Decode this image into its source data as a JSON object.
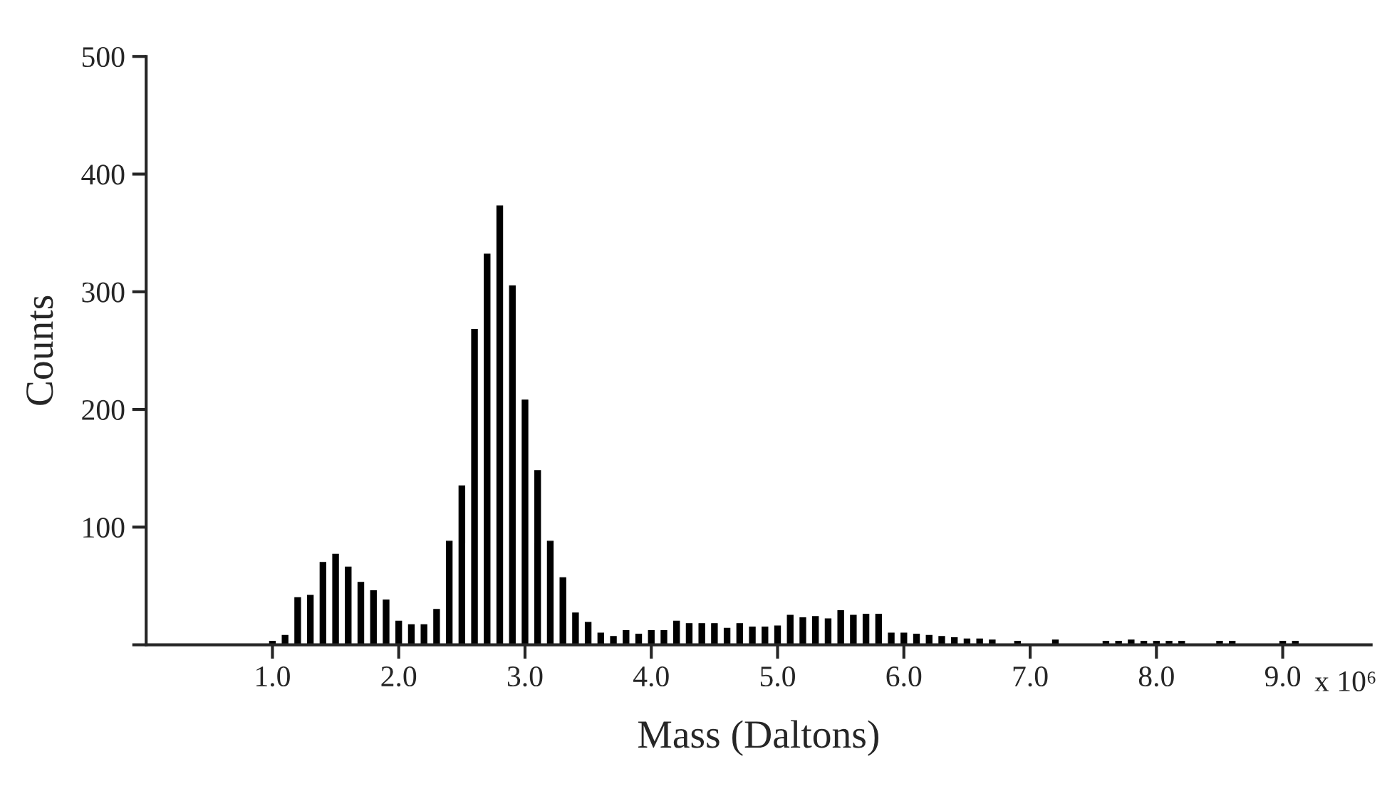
{
  "chart_data": {
    "type": "bar",
    "xlabel": "Mass (Daltons)",
    "ylabel": "Counts",
    "color": "#000000",
    "x": [
      1.0,
      1.1,
      1.2,
      1.3,
      1.4,
      1.5,
      1.6,
      1.7,
      1.8,
      1.9,
      2.0,
      2.1,
      2.2,
      2.3,
      2.4,
      2.5,
      2.6,
      2.7,
      2.8,
      2.9,
      3.0,
      3.1,
      3.2,
      3.3,
      3.4,
      3.5,
      3.6,
      3.7,
      3.8,
      3.9,
      4.0,
      4.1,
      4.2,
      4.3,
      4.4,
      4.5,
      4.6,
      4.7,
      4.8,
      4.9,
      5.0,
      5.1,
      5.2,
      5.3,
      5.4,
      5.5,
      5.6,
      5.7,
      5.8,
      5.9,
      6.0,
      6.1,
      6.2,
      6.3,
      6.4,
      6.5,
      6.6,
      6.7,
      6.9,
      7.2,
      7.6,
      7.7,
      7.8,
      7.9,
      8.0,
      8.1,
      8.2,
      8.5,
      8.6,
      9.0,
      9.1
    ],
    "values": [
      3,
      8,
      40,
      42,
      70,
      77,
      66,
      53,
      46,
      38,
      20,
      17,
      17,
      30,
      88,
      135,
      268,
      332,
      373,
      305,
      208,
      148,
      88,
      57,
      27,
      19,
      10,
      7,
      12,
      9,
      12,
      12,
      20,
      18,
      18,
      18,
      14,
      18,
      15,
      15,
      16,
      25,
      23,
      24,
      22,
      29,
      25,
      26,
      26,
      10,
      10,
      9,
      8,
      7,
      6,
      5,
      5,
      4,
      3,
      4,
      3,
      3,
      4,
      3,
      3,
      3,
      3,
      3,
      3,
      3,
      3
    ],
    "xlim": [
      0,
      9.7
    ],
    "ylim": [
      0,
      500
    ],
    "xticks": [
      {
        "value": 1.0,
        "label": "1.0"
      },
      {
        "value": 2.0,
        "label": "2.0"
      },
      {
        "value": 3.0,
        "label": "3.0"
      },
      {
        "value": 4.0,
        "label": "4.0"
      },
      {
        "value": 5.0,
        "label": "5.0"
      },
      {
        "value": 6.0,
        "label": "6.0"
      },
      {
        "value": 7.0,
        "label": "7.0"
      },
      {
        "value": 8.0,
        "label": "8.0"
      },
      {
        "value": 9.0,
        "label": "9.0"
      }
    ],
    "annotations": [
      "x 10⁶"
    ],
    "yticks": [
      {
        "value": 0,
        "label": null
      },
      100,
      200,
      300,
      400,
      500
    ],
    "grid": false,
    "legend": false
  }
}
